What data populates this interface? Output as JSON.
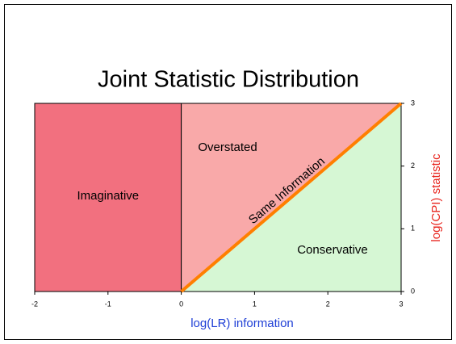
{
  "chart_data": {
    "type": "region",
    "title": "Joint Statistic Distribution",
    "xlabel": "log(LR) information",
    "ylabel": "log(CPI) statistic",
    "xlim": [
      -2,
      3
    ],
    "xticks": [
      -2,
      -1,
      0,
      1,
      2,
      3
    ],
    "ylim": [
      0,
      3
    ],
    "yticks": [
      0,
      1,
      2,
      3
    ],
    "regions": [
      {
        "name": "Imaginative",
        "color": "#f2707f"
      },
      {
        "name": "Overstated",
        "color": "#f9a9a9"
      },
      {
        "name": "Conservative",
        "color": "#d6f7d4"
      }
    ],
    "diagonal": {
      "name": "Same Information",
      "color": "#ff7f00"
    }
  }
}
